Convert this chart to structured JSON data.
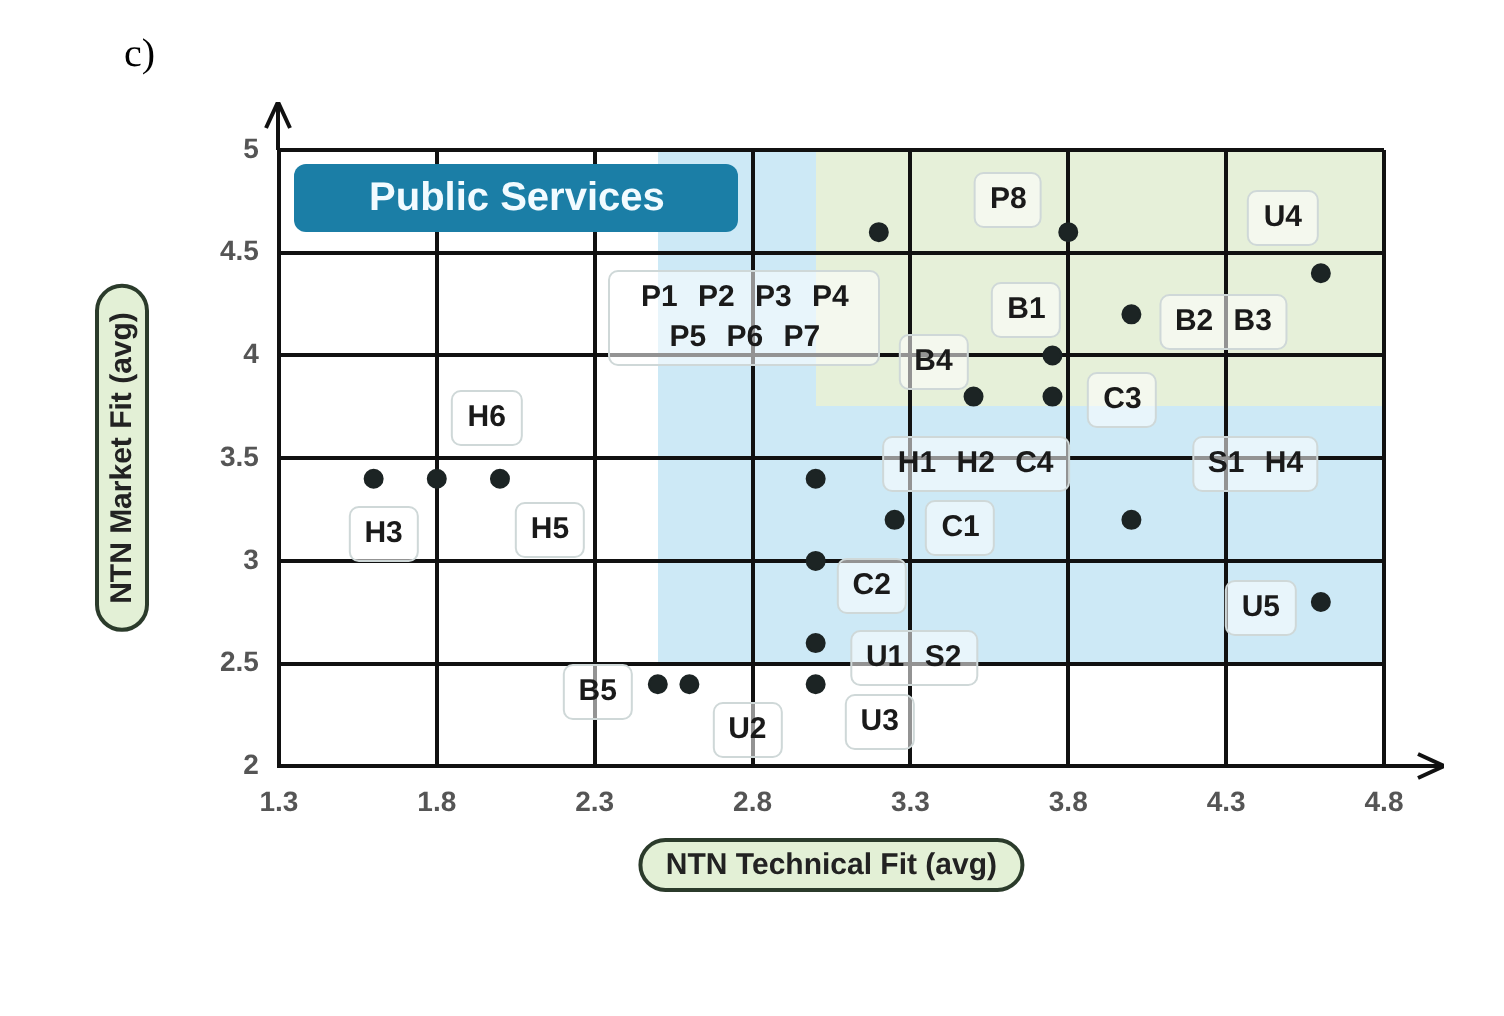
{
  "chart_data": {
    "type": "scatter",
    "title": "Public Services",
    "xlabel": "NTN Technical Fit (avg)",
    "ylabel": "NTN Market Fit (avg)",
    "x": [
      3.2,
      3.8,
      4.6,
      3.75,
      4.0,
      3.5,
      3.75,
      3.0,
      4.0,
      3.25,
      3.0,
      3.0,
      3.0,
      4.6,
      2.5,
      2.6,
      1.6,
      1.8,
      2.0
    ],
    "values": [
      4.6,
      4.6,
      4.4,
      4.0,
      4.2,
      3.8,
      3.8,
      3.4,
      3.2,
      3.2,
      3.0,
      2.6,
      2.4,
      2.8,
      2.4,
      2.4,
      3.4,
      3.4,
      3.4
    ],
    "color": "#1c2424",
    "marker": "circle",
    "xlim": [
      1.3,
      4.8
    ],
    "ylim": [
      2,
      5
    ],
    "xticks": [
      1.3,
      1.8,
      2.3,
      2.8,
      3.3,
      3.8,
      4.3,
      4.8
    ],
    "yticks": [
      2,
      2.5,
      3,
      3.5,
      4,
      4.5,
      5
    ],
    "grid": true,
    "annotations": [
      "c)",
      {
        "text": "P1 P2 P3 P4 P5 P6 P7",
        "x": 3.2,
        "y": 4.6
      },
      {
        "text": "P8",
        "x": 3.8,
        "y": 4.6
      },
      {
        "text": "U4",
        "x": 4.6,
        "y": 4.4
      },
      {
        "text": "B1",
        "x": 3.75,
        "y": 4.0
      },
      {
        "text": "B2 B3",
        "x": 4.0,
        "y": 4.2
      },
      {
        "text": "B4",
        "x": 3.5,
        "y": 3.8
      },
      {
        "text": "C3",
        "x": 3.75,
        "y": 3.8
      },
      {
        "text": "H1 H2 C4",
        "x": 3.0,
        "y": 3.4
      },
      {
        "text": "S1 H4",
        "x": 4.0,
        "y": 3.2
      },
      {
        "text": "C1",
        "x": 3.25,
        "y": 3.2
      },
      {
        "text": "C2",
        "x": 3.0,
        "y": 3.0
      },
      {
        "text": "U1 S2",
        "x": 3.0,
        "y": 2.6
      },
      {
        "text": "U3",
        "x": 3.0,
        "y": 2.4
      },
      {
        "text": "U5",
        "x": 4.6,
        "y": 2.8
      },
      {
        "text": "B5",
        "x": 2.5,
        "y": 2.4
      },
      {
        "text": "U2",
        "x": 2.6,
        "y": 2.4
      },
      {
        "text": "H3",
        "x": 1.6,
        "y": 3.4
      },
      {
        "text": "H6",
        "x": 1.8,
        "y": 3.4
      },
      {
        "text": "H5",
        "x": 2.0,
        "y": 3.4
      }
    ]
  }
}
